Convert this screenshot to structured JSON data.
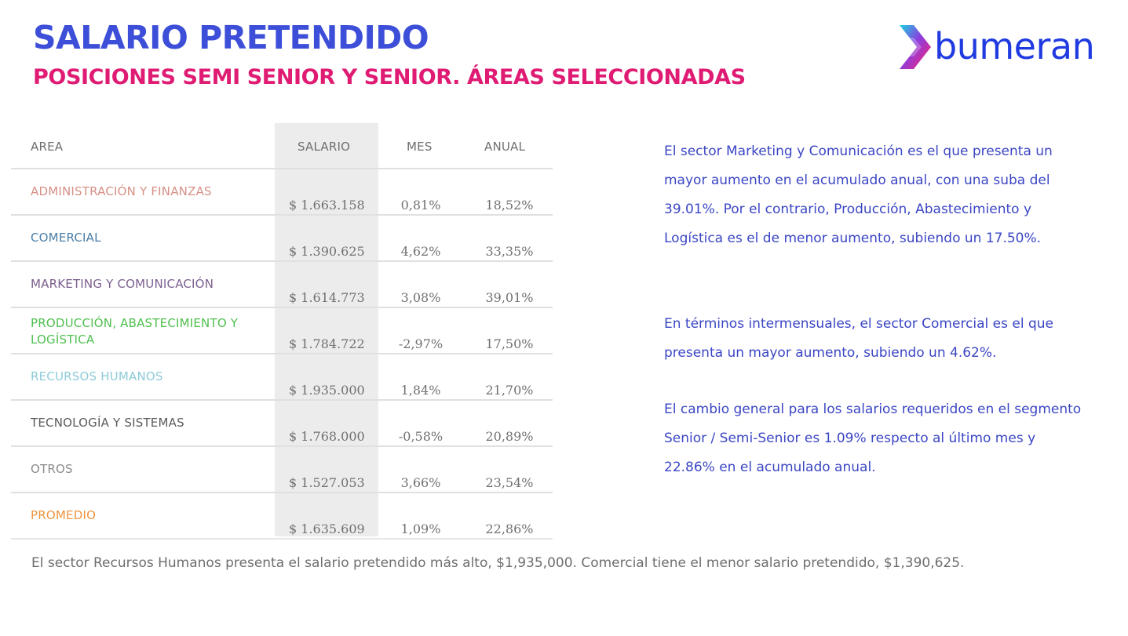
{
  "header": {
    "title": "SALARIO PRETENDIDO",
    "subtitle": "POSICIONES SEMI SENIOR Y SENIOR. ÁREAS SELECCIONADAS",
    "logo_text": "bumeran"
  },
  "table": {
    "columns": {
      "area": "AREA",
      "salario": "SALARIO",
      "mes": "MES",
      "anual": "ANUAL"
    },
    "rows": [
      {
        "area": "ADMINISTRACIÓN Y FINANZAS",
        "salario": "$ 1.663.158",
        "mes": "0,81%",
        "anual": "18,52%",
        "color": "#d69087"
      },
      {
        "area": "COMERCIAL",
        "salario": "$ 1.390.625",
        "mes": "4,62%",
        "anual": "33,35%",
        "color": "#4a7ea6"
      },
      {
        "area": "MARKETING Y COMUNICACIÓN",
        "salario": "$ 1.614.773",
        "mes": "3,08%",
        "anual": "39,01%",
        "color": "#7c5f8f"
      },
      {
        "area": "PRODUCCIÓN, ABASTECIMIENTO Y LOGÍSTICA",
        "salario": "$ 1.784.722",
        "mes": "-2,97%",
        "anual": "17,50%",
        "color": "#4fc04f"
      },
      {
        "area": "RECURSOS HUMANOS",
        "salario": "$ 1.935.000",
        "mes": "1,84%",
        "anual": "21,70%",
        "color": "#8ecbd9"
      },
      {
        "area": "TECNOLOGÍA Y SISTEMAS",
        "salario": "$ 1.768.000",
        "mes": "-0,58%",
        "anual": "20,89%",
        "color": "#5b5b5b"
      },
      {
        "area": "OTROS",
        "salario": "$ 1.527.053",
        "mes": "3,66%",
        "anual": "23,54%",
        "color": "#8c8c8c"
      },
      {
        "area": "PROMEDIO",
        "salario": "$ 1.635.609",
        "mes": "1,09%",
        "anual": "22,86%",
        "color": "#ef9440"
      }
    ]
  },
  "commentary": {
    "p1": "El sector Marketing y Comunicación es el que presenta un mayor aumento en el acumulado anual, con una suba del 39.01%. Por el contrario, Producción, Abastecimiento y Logística es el de menor aumento, subiendo un 17.50%.",
    "p2": "En términos intermensuales, el sector Comercial es el que presenta un mayor aumento, subiendo un 4.62%.",
    "p3": "El cambio general para los salarios requeridos en el segmento Senior / Semi-Senior es 1.09% respecto al último mes y 22.86% en el acumulado anual."
  },
  "footer": {
    "text": "El sector Recursos Humanos presenta el salario pretendido más alto, $1,935,000. Comercial tiene el menor salario pretendido, $1,390,625."
  },
  "colors": {
    "title": "#3d4fd8",
    "subtitle": "#df1b73",
    "commentary": "#3b46c4",
    "logo": "#1f3ae0"
  }
}
